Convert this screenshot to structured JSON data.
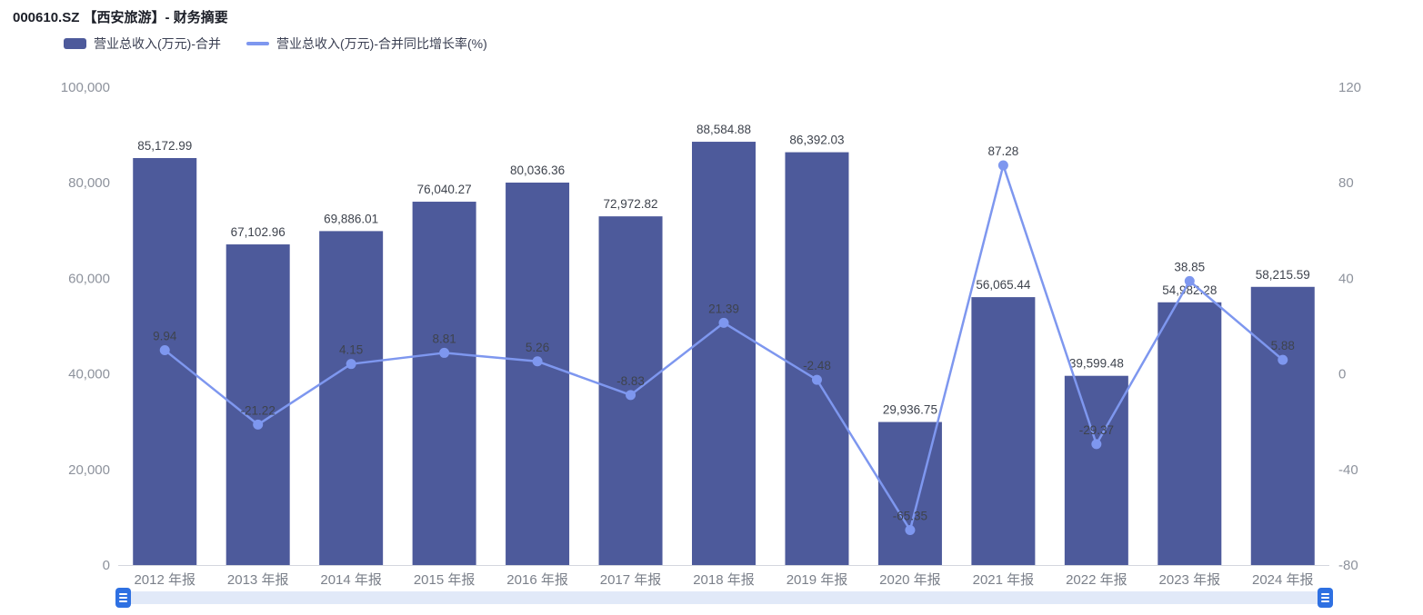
{
  "header": {
    "title": "000610.SZ 【西安旅游】- 财务摘要"
  },
  "legend": {
    "items": [
      {
        "label": "营业总收入(万元)-合并",
        "marker": "bar-swatch",
        "color": "#4d5a9b"
      },
      {
        "label": "营业总收入(万元)-合并同比增长率(%)",
        "marker": "line-swatch",
        "color": "#7e97ef"
      }
    ]
  },
  "chart_data": {
    "type": "combo",
    "title": "000610.SZ 【西安旅游】- 财务摘要",
    "grid": false,
    "legend_position": "top-left",
    "categories": [
      "2012 年报",
      "2013 年报",
      "2014 年报",
      "2015 年报",
      "2016 年报",
      "2017 年报",
      "2018 年报",
      "2019 年报",
      "2020 年报",
      "2021 年报",
      "2022 年报",
      "2023 年报",
      "2024 年报"
    ],
    "series": [
      {
        "name": "营业总收入(万元)-合并",
        "type": "bar",
        "y_axis": "left",
        "color": "#4d5a9b",
        "values": [
          85172.99,
          67102.96,
          69886.01,
          76040.27,
          80036.36,
          72972.82,
          88584.88,
          86392.03,
          29936.75,
          56065.44,
          39599.48,
          54982.28,
          58215.59
        ],
        "labels": [
          "85,172.99",
          "67,102.96",
          "69,886.01",
          "76,040.27",
          "80,036.36",
          "72,972.82",
          "88,584.88",
          "86,392.03",
          "29,936.75",
          "56,065.44",
          "39,599.48",
          "54,982.28",
          "58,215.59"
        ]
      },
      {
        "name": "营业总收入(万元)-合并同比增长率(%)",
        "type": "line",
        "y_axis": "right",
        "color": "#7e97ef",
        "values": [
          9.94,
          -21.22,
          4.15,
          8.81,
          5.26,
          -8.83,
          21.39,
          -2.48,
          -65.35,
          87.28,
          -29.37,
          38.85,
          5.88
        ],
        "labels": [
          "9.94",
          "-21.22",
          "4.15",
          "8.81",
          "5.26",
          "-8.83",
          "21.39",
          "-2.48",
          "-65.35",
          "87.28",
          "-29.37",
          "38.85",
          "5.88"
        ]
      }
    ],
    "left_axis": {
      "min": 0,
      "max": 100000,
      "tick_values": [
        0,
        20000,
        40000,
        60000,
        80000,
        100000
      ],
      "tick_labels": [
        "0",
        "20,000",
        "40,000",
        "60,000",
        "80,000",
        "100,000"
      ]
    },
    "right_axis": {
      "min": -80,
      "max": 120,
      "tick_values": [
        -80,
        -40,
        0,
        40,
        80,
        120
      ],
      "tick_labels": [
        "-80",
        "-40",
        "0",
        "40",
        "80",
        "120"
      ]
    }
  },
  "datazoom": {
    "track_color": "#e1e9f8",
    "handle_color": "#2e70e2",
    "handle_icon": "hamburger-icon"
  }
}
